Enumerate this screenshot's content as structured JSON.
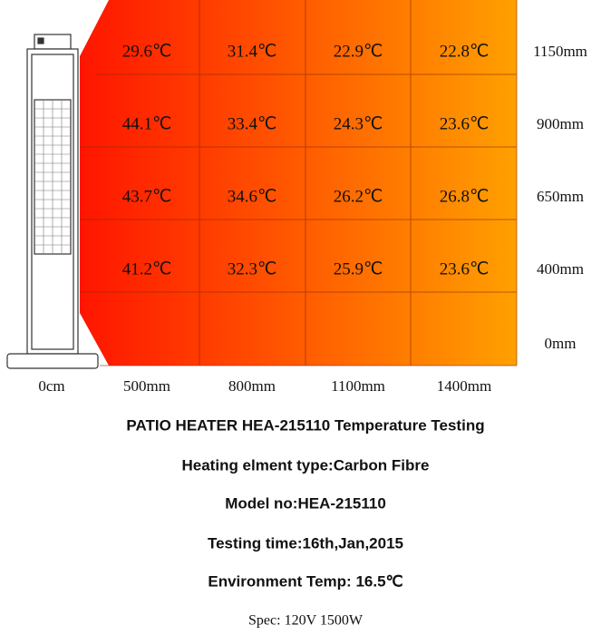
{
  "table": {
    "rows": [
      [
        "29.6℃",
        "31.4℃",
        "22.9℃",
        "22.8℃"
      ],
      [
        "44.1℃",
        "33.4℃",
        "24.3℃",
        "23.6℃"
      ],
      [
        "43.7℃",
        "34.6℃",
        "26.2℃",
        "26.8℃"
      ],
      [
        "41.2℃",
        "32.3℃",
        "25.9℃",
        "23.6℃"
      ]
    ]
  },
  "heights": [
    "1150mm",
    "900mm",
    "650mm",
    "400mm",
    "0mm"
  ],
  "distances": [
    "0cm",
    "500mm",
    "800mm",
    "1100mm",
    "1400mm"
  ],
  "captions": [
    "PATIO HEATER HEA-215110 Temperature Testing",
    "Heating elment type:Carbon Fibre",
    "Model no:HEA-215110",
    "Testing time:16th,Jan,2015",
    "Environment Temp: 16.5℃"
  ],
  "spec": "Spec: 120V 1500W"
}
